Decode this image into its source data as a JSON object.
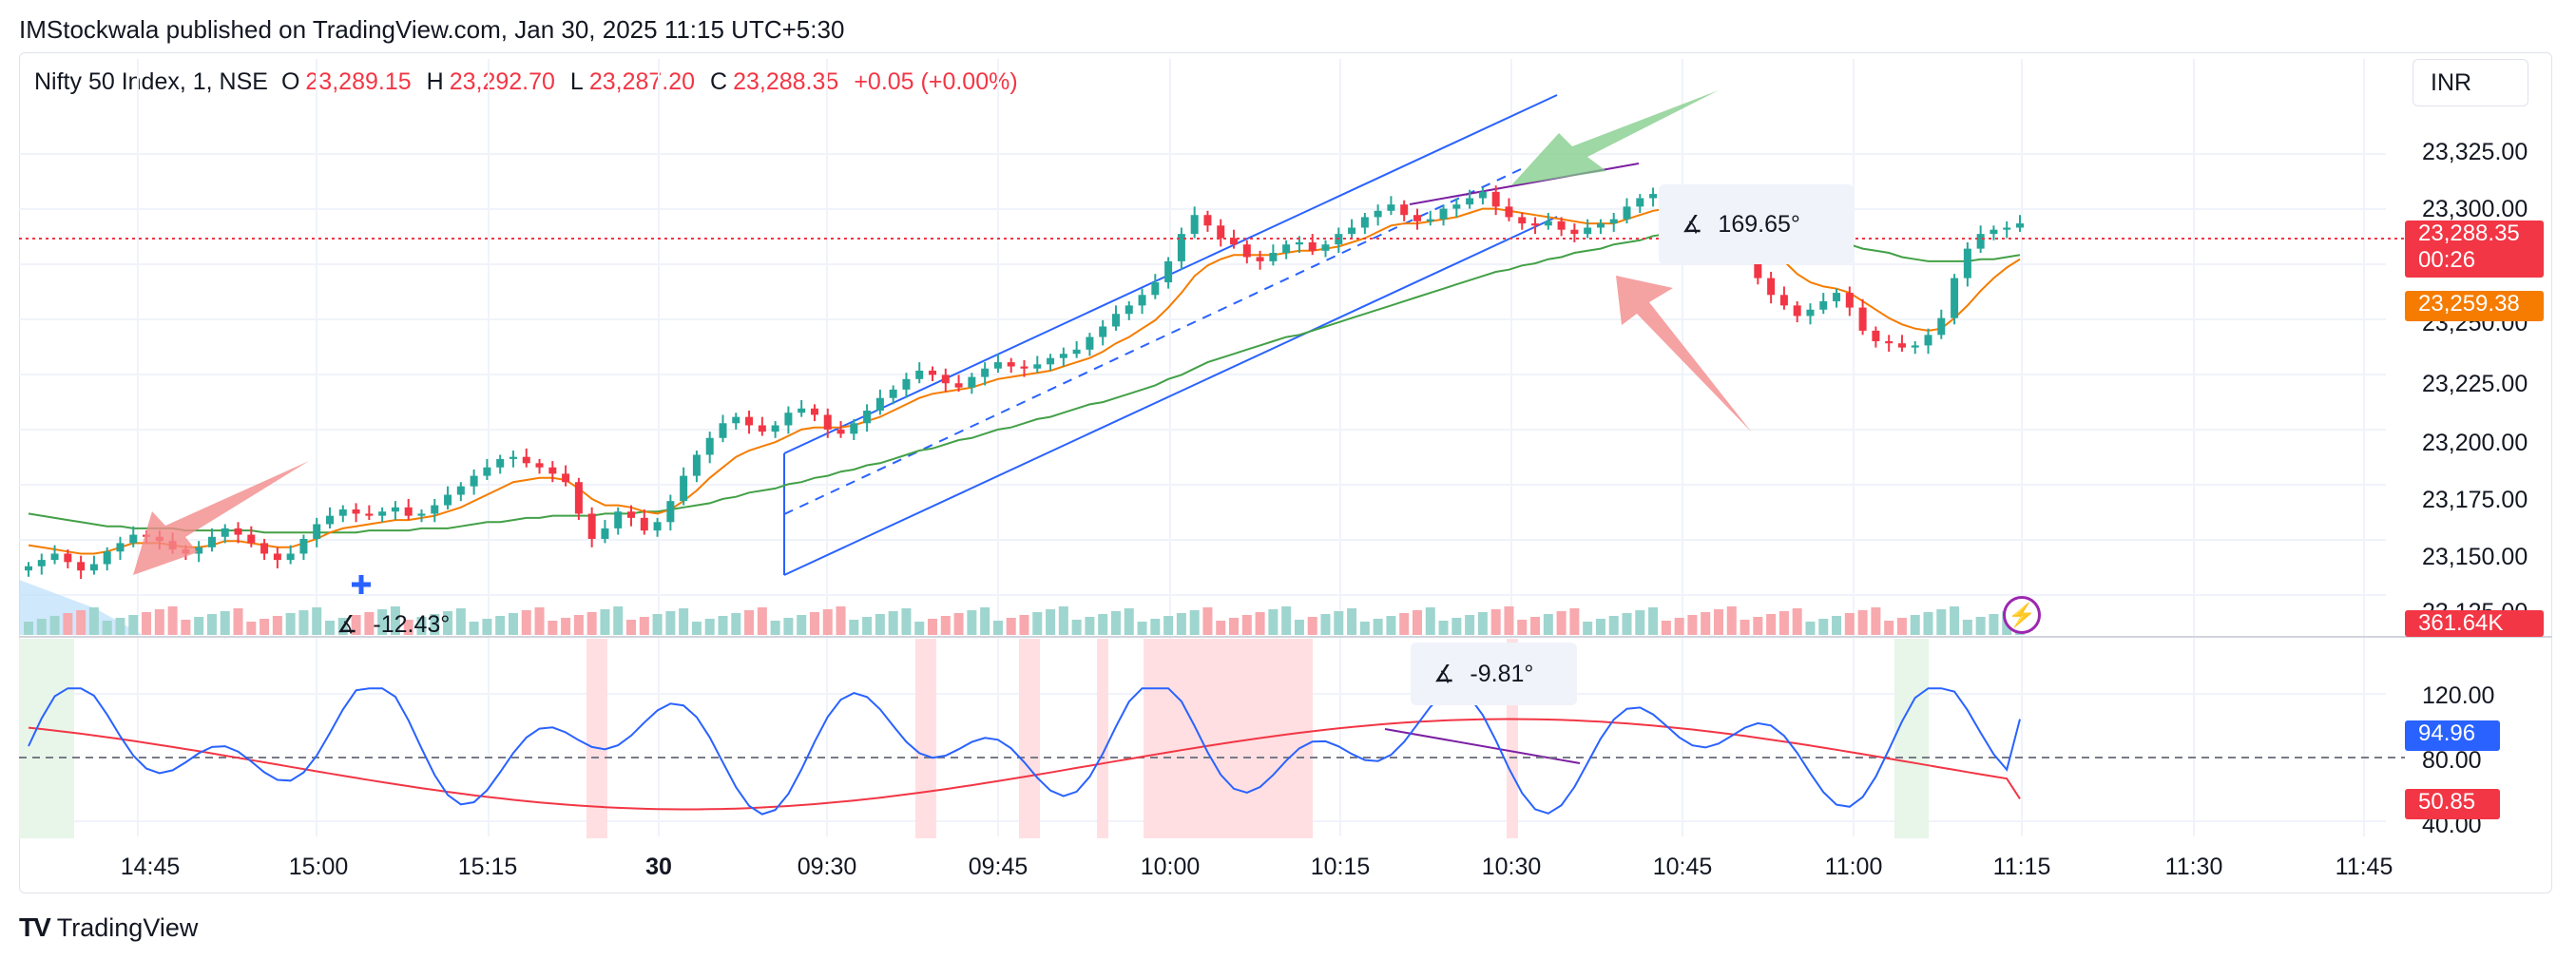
{
  "published_line": "IMStockwala published on TradingView.com, Jan 30, 2025 11:15 UTC+5:30",
  "legend": {
    "symbol": "Nifty 50 Index, 1, NSE",
    "o_label": "O",
    "o_value": "23,289.15",
    "h_label": "H",
    "h_value": "23,292.70",
    "l_label": "L",
    "l_value": "23,287.20",
    "c_label": "C",
    "c_value": "23,288.35",
    "change": "+0.05 (+0.00%)"
  },
  "currency": "INR",
  "price_axis": [
    "23,325.00",
    "23,300.00",
    "23,250.00",
    "23,225.00",
    "23,200.00",
    "23,175.00",
    "23,150.00",
    "23,125.00"
  ],
  "price_tags": {
    "last_price": "23,288.35",
    "countdown": "00:26",
    "ma_value": "23,259.38",
    "volume": "361.64K",
    "osc_blue": "94.96",
    "osc_red": "50.85"
  },
  "colors": {
    "up": "#26a69a",
    "down": "#f23645",
    "ma_orange": "#f57c00",
    "ma_green": "#43a047",
    "channel": "#2962ff",
    "rsi_blue": "#2962ff",
    "rsi_red": "#f23645",
    "purple": "#7b1fa2"
  },
  "osc_axis": [
    "120.00",
    "80.00",
    "40.00"
  ],
  "time_axis": [
    {
      "label": "14:45",
      "bold": false
    },
    {
      "label": "15:00",
      "bold": false
    },
    {
      "label": "15:15",
      "bold": false
    },
    {
      "label": "30",
      "bold": true
    },
    {
      "label": "09:30",
      "bold": false
    },
    {
      "label": "09:45",
      "bold": false
    },
    {
      "label": "10:00",
      "bold": false
    },
    {
      "label": "10:15",
      "bold": false
    },
    {
      "label": "10:30",
      "bold": false
    },
    {
      "label": "10:45",
      "bold": false
    },
    {
      "label": "11:00",
      "bold": false
    },
    {
      "label": "11:15",
      "bold": false
    },
    {
      "label": "11:30",
      "bold": false
    },
    {
      "label": "11:45",
      "bold": false
    }
  ],
  "angles": {
    "a1": "-12.43°",
    "a2": "169.65°",
    "a3": "-9.81°"
  },
  "footer": {
    "logo": "TV",
    "brand": "TradingView"
  },
  "chart_data": {
    "type": "candlestick",
    "symbol": "Nifty 50 Index, 1, NSE",
    "close_path": [
      23125,
      23128,
      23131,
      23127,
      23123,
      23126,
      23132,
      23136,
      23140,
      23139,
      23137,
      23133,
      23131,
      23134,
      23139,
      23143,
      23140,
      23136,
      23131,
      23128,
      23131,
      23138,
      23145,
      23149,
      23152,
      23150,
      23149,
      23151,
      23153,
      23149,
      23150,
      23154,
      23159,
      23163,
      23168,
      23172,
      23176,
      23177,
      23174,
      23172,
      23169,
      23165,
      23150,
      23138,
      23143,
      23151,
      23148,
      23142,
      23146,
      23156,
      23168,
      23178,
      23186,
      23193,
      23196,
      23192,
      23189,
      23192,
      23198,
      23200,
      23197,
      23190,
      23188,
      23193,
      23199,
      23205,
      23209,
      23214,
      23218,
      23216,
      23212,
      23210,
      23215,
      23219,
      23222,
      23220,
      23219,
      23221,
      23224,
      23226,
      23228,
      23234,
      23239,
      23245,
      23249,
      23254,
      23260,
      23270,
      23283,
      23292,
      23287,
      23281,
      23278,
      23272,
      23270,
      23274,
      23278,
      23279,
      23275,
      23278,
      23283,
      23286,
      23291,
      23294,
      23297,
      23292,
      23289,
      23290,
      23295,
      23297,
      23300,
      23303,
      23296,
      23291,
      23288,
      23287,
      23289,
      23285,
      23283,
      23286,
      23288,
      23290,
      23296,
      23300,
      23302,
      23301,
      23300,
      23299,
      23297,
      23290,
      23282,
      23273,
      23262,
      23254,
      23249,
      23244,
      23247,
      23251,
      23255,
      23248,
      23237,
      23232,
      23231,
      23229,
      23230,
      23235,
      23243,
      23262,
      23276,
      23283,
      23285,
      23286,
      23288
    ],
    "ma_fast": [
      23135,
      23134,
      23133,
      23132,
      23131,
      23131,
      23132,
      23134,
      23136,
      23136,
      23136,
      23135,
      23134,
      23134,
      23135,
      23137,
      23137,
      23136,
      23135,
      23134,
      23134,
      23136,
      23138,
      23141,
      23143,
      23144,
      23145,
      23146,
      23147,
      23147,
      23148,
      23149,
      23151,
      23153,
      23156,
      23159,
      23162,
      23165,
      23166,
      23167,
      23167,
      23166,
      23162,
      23157,
      23154,
      23154,
      23153,
      23151,
      23150,
      23152,
      23156,
      23161,
      23167,
      23172,
      23177,
      23180,
      23182,
      23184,
      23187,
      23190,
      23191,
      23191,
      23191,
      23192,
      23194,
      23196,
      23199,
      23202,
      23205,
      23207,
      23208,
      23209,
      23210,
      23212,
      23214,
      23215,
      23216,
      23217,
      23218,
      23220,
      23222,
      23224,
      23227,
      23231,
      23234,
      23238,
      23242,
      23248,
      23255,
      23263,
      23268,
      23271,
      23273,
      23273,
      23273,
      23273,
      23274,
      23275,
      23275,
      23276,
      23277,
      23279,
      23281,
      23284,
      23287,
      23288,
      23288,
      23289,
      23290,
      23291,
      23293,
      23295,
      23295,
      23294,
      23293,
      23292,
      23291,
      23290,
      23289,
      23288,
      23288,
      23288,
      23290,
      23292,
      23294,
      23295,
      23296,
      23297,
      23297,
      23295,
      23292,
      23288,
      23282,
      23276,
      23270,
      23264,
      23260,
      23258,
      23257,
      23255,
      23251,
      23247,
      23243,
      23240,
      23238,
      23237,
      23238,
      23243,
      23249,
      23256,
      23262,
      23267,
      23271
    ],
    "ma_slow": [
      23150,
      23149,
      23148,
      23147,
      23146,
      23145,
      23144,
      23144,
      23143,
      23143,
      23143,
      23143,
      23142,
      23142,
      23142,
      23142,
      23142,
      23142,
      23141,
      23141,
      23141,
      23141,
      23141,
      23141,
      23141,
      23141,
      23142,
      23142,
      23142,
      23142,
      23143,
      23143,
      23143,
      23144,
      23145,
      23146,
      23146,
      23147,
      23148,
      23148,
      23149,
      23149,
      23149,
      23149,
      23150,
      23150,
      23150,
      23151,
      23151,
      23152,
      23153,
      23154,
      23155,
      23157,
      23158,
      23160,
      23161,
      23162,
      23164,
      23165,
      23167,
      23168,
      23170,
      23171,
      23173,
      23174,
      23176,
      23178,
      23180,
      23181,
      23183,
      23185,
      23186,
      23188,
      23190,
      23191,
      23193,
      23195,
      23196,
      23198,
      23200,
      23202,
      23203,
      23205,
      23207,
      23209,
      23211,
      23214,
      23216,
      23219,
      23222,
      23224,
      23226,
      23228,
      23230,
      23232,
      23234,
      23235,
      23237,
      23239,
      23241,
      23243,
      23245,
      23247,
      23249,
      23251,
      23253,
      23255,
      23257,
      23259,
      23261,
      23263,
      23265,
      23266,
      23268,
      23269,
      23271,
      23272,
      23274,
      23275,
      23276,
      23278,
      23279,
      23280,
      23282,
      23283,
      23284,
      23285,
      23285,
      23286,
      23286,
      23286,
      23285,
      23284,
      23283,
      23282,
      23281,
      23280,
      23279,
      23278,
      23276,
      23275,
      23274,
      23272,
      23271,
      23270,
      23270,
      23270,
      23270,
      23271,
      23271,
      23272,
      23273
    ],
    "price_range": [
      23105,
      23340
    ],
    "last_price": 23288.35,
    "volume_last": "361.64K",
    "oscillator": {
      "range": [
        30,
        130
      ],
      "blue_last": 94.96,
      "red_last": 50.85
    }
  }
}
